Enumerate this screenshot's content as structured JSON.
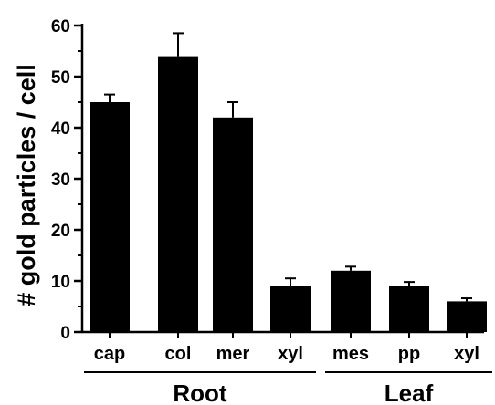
{
  "chart_data": {
    "type": "bar",
    "title": "",
    "ylabel": "# gold particles / cell",
    "xlabel": "",
    "ylim": [
      0,
      60
    ],
    "yticks": [
      0,
      10,
      20,
      30,
      40,
      50,
      60
    ],
    "categories": [
      "cap",
      "col",
      "mer",
      "xyl",
      "mes",
      "pp",
      "xyl"
    ],
    "values": [
      45,
      54,
      42,
      9,
      12,
      9,
      6
    ],
    "errors": [
      1.5,
      4.5,
      3.0,
      1.5,
      0.8,
      0.8,
      0.6
    ],
    "groups": [
      {
        "label": "Root",
        "start": 0,
        "end": 3
      },
      {
        "label": "Leaf",
        "start": 4,
        "end": 6
      }
    ],
    "bar_color": "#000000",
    "grid": false
  }
}
